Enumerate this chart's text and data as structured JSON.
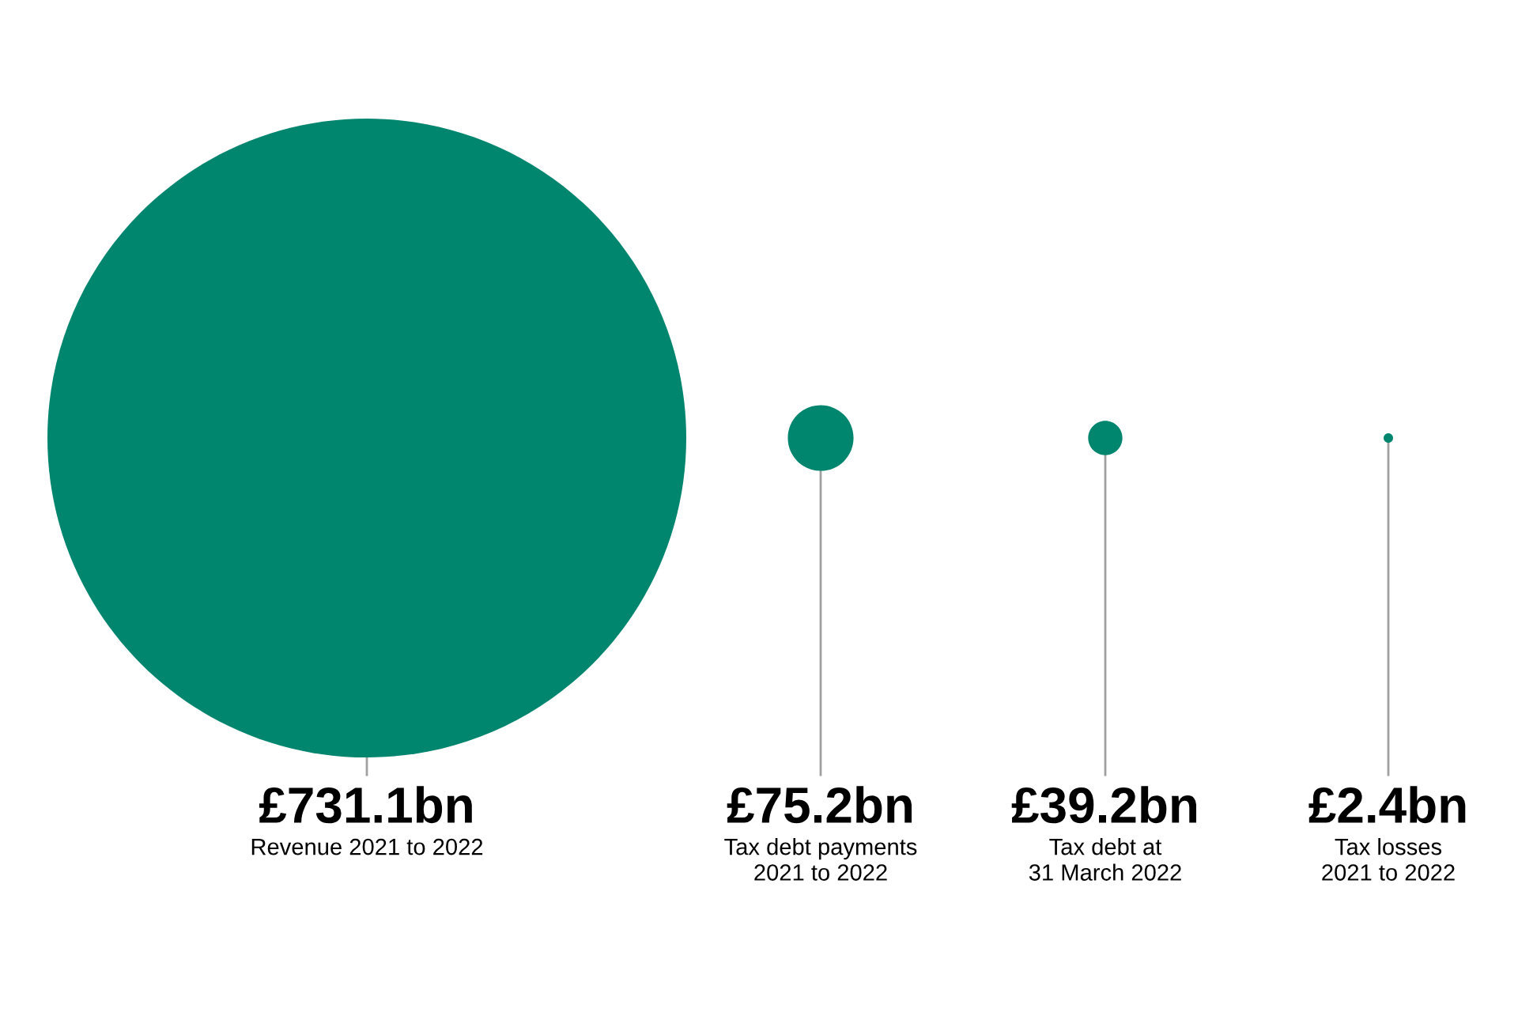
{
  "chart_data": {
    "type": "other",
    "categories": [
      "Revenue 2021 to 2022",
      "Tax debt payments\n2021 to 2022",
      "Tax debt at\n31 March 2022",
      "Tax losses\n2021 to 2022"
    ],
    "values": [
      731.1,
      75.2,
      39.2,
      2.4
    ],
    "value_labels": [
      "£731.1bn",
      "£75.2bn",
      "£39.2bn",
      "£2.4bn"
    ],
    "color": "#00856f"
  }
}
